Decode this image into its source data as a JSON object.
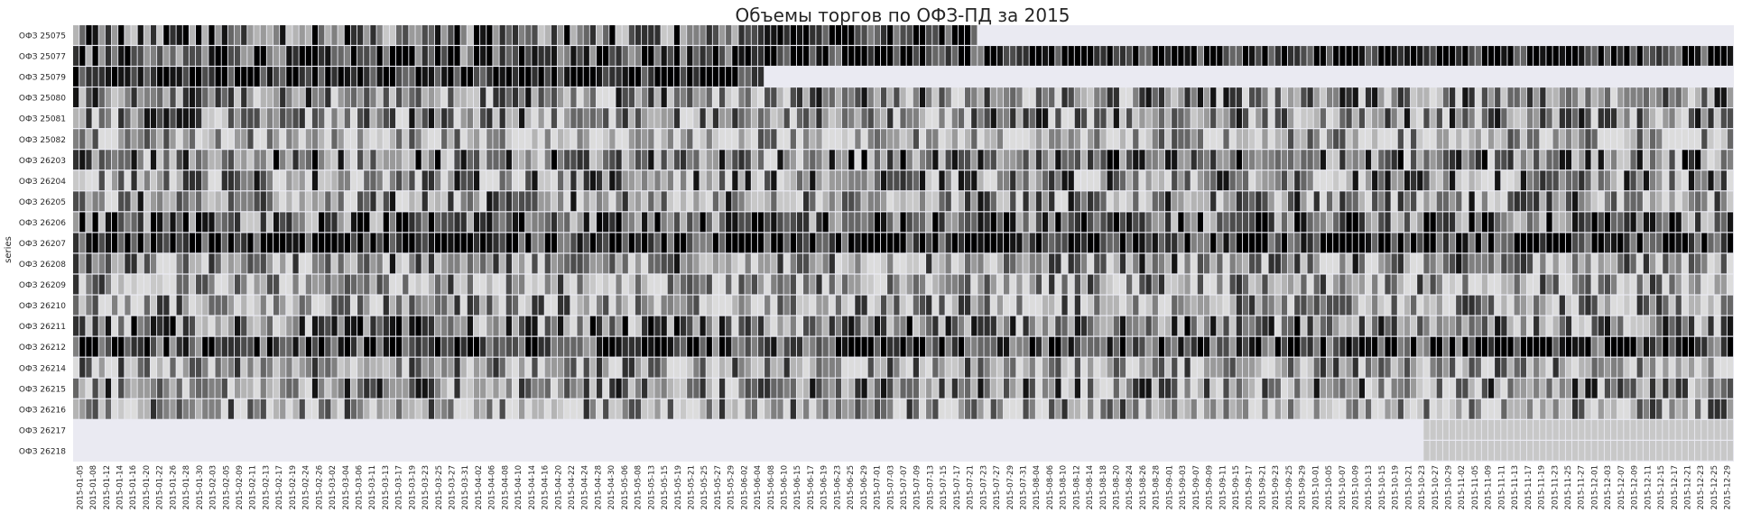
{
  "chart_data": {
    "type": "heatmap",
    "title": "Объемы торгов по ОФЗ-ПД за 2015",
    "ylabel": "series",
    "xlabel": "",
    "grid": false,
    "colormap": "grayscale (low = light, high = black); missing = light lavender background",
    "background_color": "#eaeaf2",
    "row_labels": [
      "ОФЗ 25075",
      "ОФЗ 25077",
      "ОФЗ 25079",
      "ОФЗ 25080",
      "ОФЗ 25081",
      "ОФЗ 25082",
      "ОФЗ 26203",
      "ОФЗ 26204",
      "ОФЗ 26205",
      "ОФЗ 26206",
      "ОФЗ 26207",
      "ОФЗ 26208",
      "ОФЗ 26209",
      "ОФЗ 26210",
      "ОФЗ 26211",
      "ОФЗ 26212",
      "ОФЗ 26214",
      "ОФЗ 26215",
      "ОФЗ 26216",
      "ОФЗ 26217",
      "ОФЗ 26218"
    ],
    "x_start_date": "2015-01-05",
    "x_end_date": "2015-12-29",
    "x_tick_labels": [
      "2015-01-05",
      "2015-01-08",
      "2015-01-12",
      "2015-01-14",
      "2015-01-16",
      "2015-01-20",
      "2015-01-22",
      "2015-01-26",
      "2015-01-28",
      "2015-01-30",
      "2015-02-03",
      "2015-02-05",
      "2015-02-09",
      "2015-02-11",
      "2015-02-13",
      "2015-02-17",
      "2015-02-19",
      "2015-02-24",
      "2015-02-26",
      "2015-03-02",
      "2015-03-04",
      "2015-03-06",
      "2015-03-11",
      "2015-03-13",
      "2015-03-17",
      "2015-03-19",
      "2015-03-23",
      "2015-03-25",
      "2015-03-27",
      "2015-03-31",
      "2015-04-02",
      "2015-04-06",
      "2015-04-08",
      "2015-04-10",
      "2015-04-14",
      "2015-04-16",
      "2015-04-20",
      "2015-04-22",
      "2015-04-24",
      "2015-04-28",
      "2015-04-30",
      "2015-05-06",
      "2015-05-08",
      "2015-05-13",
      "2015-05-15",
      "2015-05-19",
      "2015-05-21",
      "2015-05-25",
      "2015-05-27",
      "2015-05-29",
      "2015-06-02",
      "2015-06-04",
      "2015-06-08",
      "2015-06-10",
      "2015-06-15",
      "2015-06-17",
      "2015-06-19",
      "2015-06-23",
      "2015-06-25",
      "2015-06-29",
      "2015-07-01",
      "2015-07-03",
      "2015-07-07",
      "2015-07-09",
      "2015-07-13",
      "2015-07-15",
      "2015-07-17",
      "2015-07-21",
      "2015-07-23",
      "2015-07-27",
      "2015-07-29",
      "2015-07-31",
      "2015-08-04",
      "2015-08-06",
      "2015-08-10",
      "2015-08-12",
      "2015-08-14",
      "2015-08-18",
      "2015-08-20",
      "2015-08-24",
      "2015-08-26",
      "2015-08-28",
      "2015-09-01",
      "2015-09-03",
      "2015-09-07",
      "2015-09-09",
      "2015-09-11",
      "2015-09-15",
      "2015-09-17",
      "2015-09-21",
      "2015-09-23",
      "2015-09-25",
      "2015-09-29",
      "2015-10-01",
      "2015-10-05",
      "2015-10-07",
      "2015-10-09",
      "2015-10-13",
      "2015-10-15",
      "2015-10-19",
      "2015-10-21",
      "2015-10-23",
      "2015-10-27",
      "2015-10-29",
      "2015-11-02",
      "2015-11-05",
      "2015-11-09",
      "2015-11-11",
      "2015-11-13",
      "2015-11-17",
      "2015-11-19",
      "2015-11-23",
      "2015-11-25",
      "2015-11-27",
      "2015-12-01",
      "2015-12-03",
      "2015-12-07",
      "2015-12-09",
      "2015-12-11",
      "2015-12-15",
      "2015-12-17",
      "2015-12-21",
      "2015-12-23",
      "2015-12-25",
      "2015-12-29"
    ],
    "row_profiles": [
      {
        "series": "ОФЗ 25075",
        "mean_level": 0.55,
        "active_until": "2015-07-17",
        "note": "darker (higher volume) from June to mid-July; no trades after mid-July"
      },
      {
        "series": "ОФЗ 25077",
        "mean_level": 0.72,
        "active_until": "2015-12-29",
        "note": "mostly black (high volume) from June onward"
      },
      {
        "series": "ОФЗ 25079",
        "mean_level": 0.97,
        "active_until": "2015-06-02",
        "note": "almost fully black until early June; no trades after"
      },
      {
        "series": "ОФЗ 25080",
        "mean_level": 0.45
      },
      {
        "series": "ОФЗ 25081",
        "mean_level": 0.45
      },
      {
        "series": "ОФЗ 25082",
        "mean_level": 0.22
      },
      {
        "series": "ОФЗ 26203",
        "mean_level": 0.5
      },
      {
        "series": "ОФЗ 26204",
        "mean_level": 0.42
      },
      {
        "series": "ОФЗ 26205",
        "mean_level": 0.38
      },
      {
        "series": "ОФЗ 26206",
        "mean_level": 0.6
      },
      {
        "series": "ОФЗ 26207",
        "mean_level": 0.85
      },
      {
        "series": "ОФЗ 26208",
        "mean_level": 0.38
      },
      {
        "series": "ОФЗ 26209",
        "mean_level": 0.3
      },
      {
        "series": "ОФЗ 26210",
        "mean_level": 0.35
      },
      {
        "series": "ОФЗ 26211",
        "mean_level": 0.48
      },
      {
        "series": "ОФЗ 26212",
        "mean_level": 0.78
      },
      {
        "series": "ОФЗ 26214",
        "mean_level": 0.35
      },
      {
        "series": "ОФЗ 26215",
        "mean_level": 0.42
      },
      {
        "series": "ОФЗ 26216",
        "mean_level": 0.3
      },
      {
        "series": "ОФЗ 26217",
        "mean_level": 0.0,
        "active_from": "2015-10-23",
        "note": "light gray (low volume) from late October; no trades before"
      },
      {
        "series": "ОФЗ 26218",
        "mean_level": 0.0,
        "active_from": "2015-10-23",
        "note": "light gray (low volume) from late October; no trades before"
      }
    ]
  }
}
